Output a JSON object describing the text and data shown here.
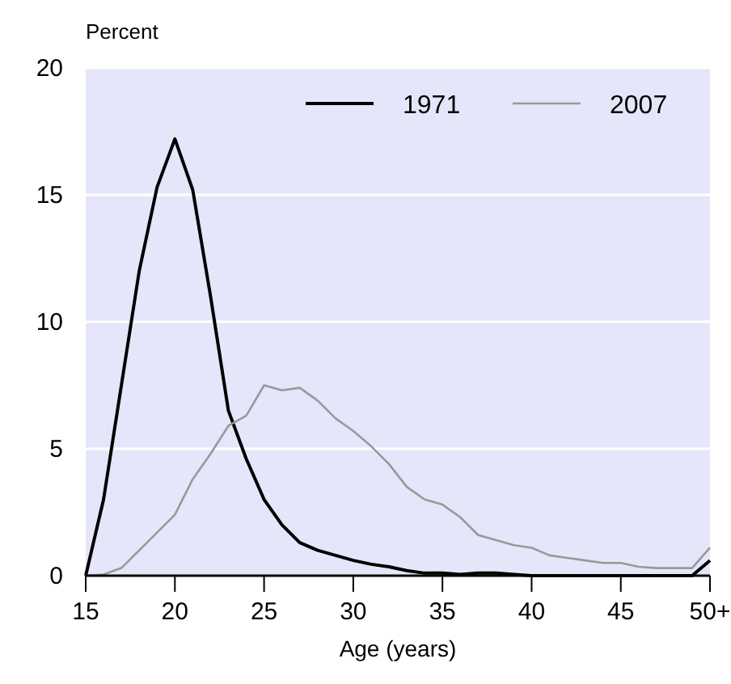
{
  "chart_data": {
    "type": "line",
    "ylabel": "Percent",
    "xlabel": "Age (years)",
    "x": [
      15,
      16,
      17,
      18,
      19,
      20,
      21,
      22,
      23,
      24,
      25,
      26,
      27,
      28,
      29,
      30,
      31,
      32,
      33,
      34,
      35,
      36,
      37,
      38,
      39,
      40,
      41,
      42,
      43,
      44,
      45,
      46,
      47,
      48,
      49,
      50
    ],
    "series": [
      {
        "name": "1971",
        "color": "#000000",
        "values": [
          0,
          3,
          7.5,
          12,
          15.3,
          17.2,
          15.2,
          11,
          6.5,
          4.6,
          3,
          2,
          1.3,
          1,
          0.8,
          0.6,
          0.45,
          0.35,
          0.2,
          0.1,
          0.1,
          0.05,
          0.1,
          0.1,
          0.05,
          0,
          0,
          0,
          0,
          0,
          0,
          0,
          0,
          0,
          0,
          0.6
        ]
      },
      {
        "name": "2007",
        "color": "#999999",
        "values": [
          0,
          0.05,
          0.3,
          1,
          1.7,
          2.4,
          3.8,
          4.8,
          5.9,
          6.3,
          7.5,
          7.3,
          7.4,
          6.9,
          6.2,
          5.7,
          5.1,
          4.4,
          3.5,
          3,
          2.8,
          2.3,
          1.6,
          1.4,
          1.2,
          1.1,
          0.8,
          0.7,
          0.6,
          0.5,
          0.5,
          0.35,
          0.3,
          0.3,
          0.3,
          1.1
        ]
      }
    ],
    "xlim": [
      15,
      50
    ],
    "xticks": [
      15,
      20,
      25,
      30,
      35,
      40,
      45,
      {
        "value": 50,
        "label": "50+"
      }
    ],
    "ylim": [
      0,
      20
    ],
    "yticks": [
      0,
      5,
      10,
      15,
      20
    ],
    "grid": "y",
    "legend": "top right"
  }
}
